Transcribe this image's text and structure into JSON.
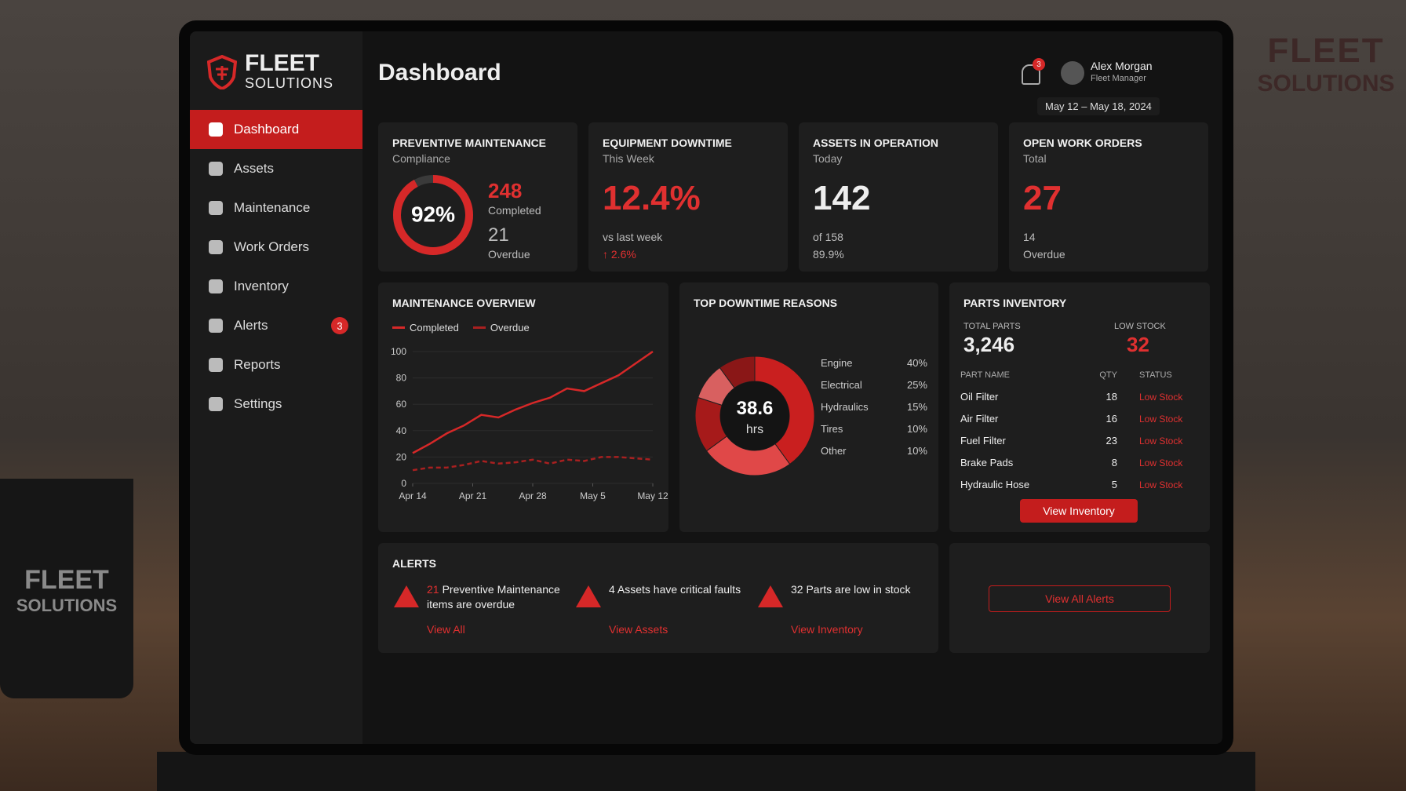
{
  "scene": {
    "wall_sign": [
      "FLEET",
      "SOLUTIONS"
    ],
    "mug_text": [
      "FLEET",
      "SOLUTIONS"
    ]
  },
  "brand": {
    "name": "FLEET",
    "sub": "SOLUTIONS"
  },
  "nav": [
    {
      "label": "Dashboard",
      "active": true
    },
    {
      "label": "Assets"
    },
    {
      "label": "Maintenance"
    },
    {
      "label": "Work Orders"
    },
    {
      "label": "Inventory"
    },
    {
      "label": "Alerts",
      "badge": 3
    },
    {
      "label": "Reports"
    },
    {
      "label": "Settings"
    }
  ],
  "header": {
    "title": "Dashboard",
    "notifications": 3,
    "user": "Alex Morgan",
    "role": "Fleet Manager",
    "date_range": "May 12 – May 18, 2024"
  },
  "kpis": [
    {
      "title": "PREVENTIVE MAINTENANCE",
      "subtitle": "Compliance",
      "value": {
        "value": 92,
        "label": "92%"
      },
      "completed": 248,
      "completed_label": "Completed",
      "overdue": 21,
      "overdue_label": "Overdue"
    },
    {
      "title": "EQUIPMENT DOWNTIME",
      "subtitle": "This Week",
      "value": "12.4%",
      "note": "vs last week",
      "change": "↑ 2.6%"
    },
    {
      "title": "ASSETS IN OPERATION",
      "subtitle": "Today",
      "value": 142,
      "note": "of 158",
      "change": "89.9%"
    },
    {
      "title": "OPEN WORK ORDERS",
      "subtitle": "Total",
      "value": 27,
      "note": 14,
      "change": "Overdue"
    }
  ],
  "chart_data": [
    {
      "type": "line",
      "title": "MAINTENANCE OVERVIEW",
      "x": [
        0,
        2,
        4,
        6,
        8,
        10,
        12,
        14,
        16,
        18,
        20,
        22,
        24,
        26,
        28
      ],
      "xlim": [
        0,
        28
      ],
      "xticks": [
        {
          "value": 0,
          "label": "Apr 14"
        },
        {
          "value": 7,
          "label": "Apr 21"
        },
        {
          "value": 14,
          "label": "Apr 28"
        },
        {
          "value": 21,
          "label": "May 5"
        },
        {
          "value": 28,
          "label": "May 12"
        }
      ],
      "ylim": [
        0,
        100
      ],
      "yticks": [
        0,
        20,
        40,
        60,
        80,
        100
      ],
      "series": [
        {
          "name": "Completed",
          "color": "#d62828",
          "dashed": false,
          "values": [
            23,
            30,
            38,
            44,
            52,
            50,
            56,
            61,
            65,
            72,
            70,
            76,
            82,
            91,
            100
          ]
        },
        {
          "name": "Overdue",
          "color": "#a82020",
          "dashed": true,
          "values": [
            10,
            12,
            12,
            14,
            17,
            15,
            16,
            18,
            15,
            18,
            17,
            20,
            20,
            19,
            18
          ]
        }
      ]
    },
    {
      "type": "pie",
      "title": "TOP DOWNTIME REASONS",
      "center_value": 38.6,
      "center_unit": "hrs",
      "categories": [
        "Engine",
        "Electrical",
        "Hydraulics",
        "Tires",
        "Other"
      ],
      "values": [
        40,
        25,
        15,
        10,
        10
      ],
      "value_labels": [
        "40%",
        "25%",
        "15%",
        "10%",
        "10%"
      ],
      "colors": [
        "#c91f1f",
        "#e04848",
        "#a61a1a",
        "#d86060",
        "#8a1717"
      ]
    }
  ],
  "parts": {
    "title": "PARTS INVENTORY",
    "total_label": "TOTAL PARTS",
    "total": "3,246",
    "low_label": "LOW STOCK",
    "low": 32,
    "columns": [
      "PART NAME",
      "QTY",
      "STATUS"
    ],
    "rows": [
      [
        "Oil Filter",
        18,
        "Low Stock"
      ],
      [
        "Air Filter",
        16,
        "Low Stock"
      ],
      [
        "Fuel Filter",
        23,
        "Low Stock"
      ],
      [
        "Brake Pads",
        8,
        "Low Stock"
      ],
      [
        "Hydraulic Hose",
        5,
        "Low Stock"
      ]
    ],
    "button": "View Inventory"
  },
  "alerts": {
    "title": "ALERTS",
    "items": [
      {
        "count": 21,
        "text": "Preventive Maintenance items are overdue",
        "link": "View All"
      },
      {
        "text": "4 Assets have critical faults",
        "link": "View Assets"
      },
      {
        "text": "32 Parts are low in stock",
        "link": "View Inventory"
      }
    ],
    "button": "View All Alerts"
  }
}
